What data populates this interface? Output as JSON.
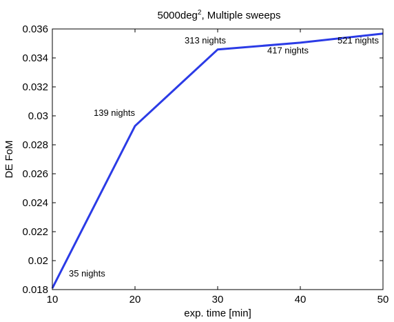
{
  "chart_data": {
    "type": "line",
    "title": "5000deg",
    "title_superscript": "2",
    "title_suffix": ", Multiple sweeps",
    "xlabel": "exp. time [min]",
    "ylabel": "DE FoM",
    "xlim": [
      10,
      50
    ],
    "ylim": [
      0.018,
      0.036
    ],
    "xticks": [
      10,
      20,
      30,
      40,
      50
    ],
    "xtick_labels": [
      "10",
      "20",
      "30",
      "40",
      "50"
    ],
    "yticks": [
      0.018,
      0.02,
      0.022,
      0.024,
      0.026,
      0.028,
      0.03,
      0.032,
      0.034,
      0.036
    ],
    "ytick_labels": [
      "0.018",
      "0.02",
      "0.022",
      "0.024",
      "0.026",
      "0.028",
      "0.03",
      "0.032",
      "0.034",
      "0.036"
    ],
    "grid": false,
    "series": [
      {
        "x": [
          10,
          20,
          30,
          40,
          50
        ],
        "y": [
          0.0181,
          0.0293,
          0.03458,
          0.03505,
          0.03568
        ],
        "color": "#2b3be6"
      }
    ],
    "annotations": [
      {
        "text": "35 nights",
        "x": 12.0,
        "y": 0.0189
      },
      {
        "text": "139 nights",
        "x": 15.0,
        "y": 0.03
      },
      {
        "text": "313 nights",
        "x": 26.0,
        "y": 0.035
      },
      {
        "text": "417 nights",
        "x": 36.0,
        "y": 0.0343
      },
      {
        "text": "521 nights",
        "x": 44.5,
        "y": 0.035
      }
    ]
  }
}
